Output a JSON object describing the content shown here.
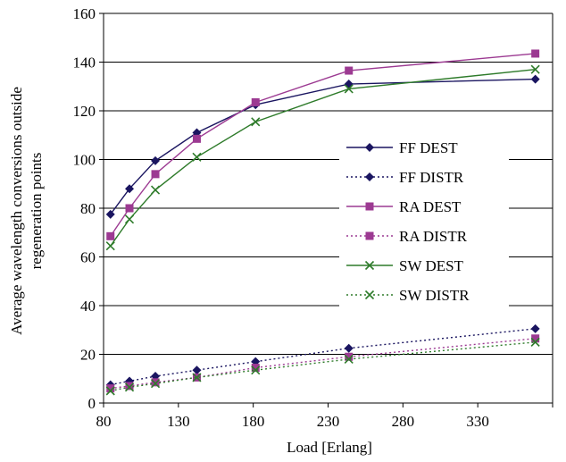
{
  "chart_data": {
    "type": "line",
    "title": "",
    "xlabel": "Load [Erlang]",
    "ylabel": [
      "Average wavelength conversions outside",
      "regeneration points"
    ],
    "x_ticks": [
      "80",
      "130",
      "180",
      "230",
      "280",
      "330"
    ],
    "x": [
      84,
      95,
      110,
      134,
      168,
      222,
      330
    ],
    "ylim": [
      0,
      160
    ],
    "y_ticks": [
      "0",
      "20",
      "40",
      "60",
      "80",
      "100",
      "120",
      "140",
      "160"
    ],
    "grid": "horizontal",
    "legend_position": "right",
    "series": [
      {
        "name": "FF DEST",
        "color": "#1a1560",
        "line": "solid",
        "marker": "diamond",
        "values": [
          77.5,
          88,
          99.5,
          111,
          122.5,
          131,
          133
        ]
      },
      {
        "name": "FF DISTR",
        "color": "#1a1560",
        "line": "dotted",
        "marker": "diamond",
        "values": [
          7.5,
          9,
          11,
          13.5,
          17,
          22.5,
          30.5
        ]
      },
      {
        "name": "RA DEST",
        "color": "#9c3a92",
        "line": "solid",
        "marker": "square",
        "values": [
          68.5,
          80,
          94,
          108.5,
          123.5,
          136.5,
          143.5
        ]
      },
      {
        "name": "RA DISTR",
        "color": "#9c3a92",
        "line": "dotted",
        "marker": "square",
        "values": [
          6,
          7,
          8.5,
          10.5,
          14.5,
          19,
          26.5
        ]
      },
      {
        "name": "SW DEST",
        "color": "#2e7b2a",
        "line": "solid",
        "marker": "x",
        "values": [
          64.5,
          75.5,
          87.5,
          101,
          115.5,
          129,
          137
        ]
      },
      {
        "name": "SW DISTR",
        "color": "#2e7b2a",
        "line": "dotted",
        "marker": "x",
        "values": [
          5,
          6.5,
          8,
          10.5,
          13.5,
          18,
          25
        ]
      }
    ]
  }
}
